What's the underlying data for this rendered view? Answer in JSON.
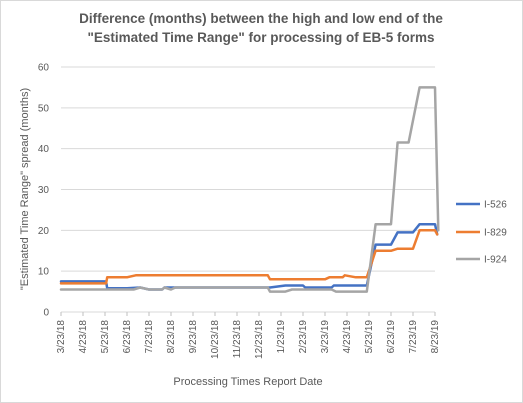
{
  "chart_data": {
    "type": "line",
    "title_line1": "Difference (months) between the high and low end of  the",
    "title_line2": "\"Estimated Time Range\" for processing of EB-5 forms",
    "xlabel": "Processing Times Report Date",
    "ylabel": "\"Estimated Time Range\" spread  (months)",
    "ylim": [
      0,
      60
    ],
    "yticks": [
      0,
      10,
      20,
      30,
      40,
      50,
      60
    ],
    "grid": true,
    "legend_position": "right",
    "x_tick_labels": [
      "3/23/18",
      "4/23/18",
      "5/23/18",
      "6/23/18",
      "7/23/18",
      "8/23/18",
      "9/23/18",
      "10/23/18",
      "11/23/18",
      "12/23/18",
      "1/23/19",
      "2/23/19",
      "3/23/19",
      "4/23/19",
      "5/23/19",
      "6/23/19",
      "7/23/19",
      "8/23/19"
    ],
    "x_tick_months": [
      0,
      1,
      2,
      3,
      4,
      5,
      6,
      7,
      8,
      9,
      10,
      11,
      12,
      13,
      14,
      15,
      16,
      17
    ],
    "x_range_months": [
      0,
      17
    ],
    "series": [
      {
        "name": "I-526",
        "color": "#4472c4",
        "points": [
          [
            0,
            7.5
          ],
          [
            2.05,
            7.5
          ],
          [
            2.1,
            5.8
          ],
          [
            3,
            5.8
          ],
          [
            3.6,
            6
          ],
          [
            4,
            5.5
          ],
          [
            4.6,
            5.5
          ],
          [
            4.7,
            6
          ],
          [
            5,
            6
          ],
          [
            9.4,
            6
          ],
          [
            9.5,
            6
          ],
          [
            10.2,
            6.5
          ],
          [
            11,
            6.5
          ],
          [
            11.1,
            6
          ],
          [
            12.3,
            6
          ],
          [
            12.4,
            6.5
          ],
          [
            13.9,
            6.5
          ],
          [
            14.3,
            16.5
          ],
          [
            15,
            16.5
          ],
          [
            15.3,
            19.5
          ],
          [
            16,
            19.5
          ],
          [
            16.3,
            21.5
          ],
          [
            17,
            21.5
          ],
          [
            17.1,
            19
          ]
        ]
      },
      {
        "name": "I-829",
        "color": "#ed7d31",
        "points": [
          [
            0,
            7
          ],
          [
            2.05,
            7
          ],
          [
            2.1,
            8.5
          ],
          [
            3,
            8.5
          ],
          [
            3.4,
            9
          ],
          [
            9.4,
            9
          ],
          [
            9.5,
            8
          ],
          [
            12,
            8
          ],
          [
            12.2,
            8.5
          ],
          [
            12.8,
            8.5
          ],
          [
            12.9,
            9
          ],
          [
            13.4,
            8.5
          ],
          [
            13.9,
            8.5
          ],
          [
            14.3,
            15
          ],
          [
            15,
            15
          ],
          [
            15.3,
            15.5
          ],
          [
            16,
            15.5
          ],
          [
            16.3,
            20
          ],
          [
            17,
            20
          ],
          [
            17.1,
            19
          ]
        ]
      },
      {
        "name": "I-924",
        "color": "#a5a5a5",
        "points": [
          [
            0,
            5.5
          ],
          [
            2.05,
            5.5
          ],
          [
            2.1,
            5.5
          ],
          [
            3.3,
            5.5
          ],
          [
            3.6,
            6
          ],
          [
            4,
            5.5
          ],
          [
            4.6,
            5.5
          ],
          [
            4.7,
            6
          ],
          [
            5,
            5.5
          ],
          [
            5.2,
            6
          ],
          [
            9.4,
            6
          ],
          [
            9.5,
            5
          ],
          [
            10.2,
            5
          ],
          [
            10.5,
            5.5
          ],
          [
            12.3,
            5.5
          ],
          [
            12.5,
            5
          ],
          [
            13.9,
            5
          ],
          [
            14.3,
            21.5
          ],
          [
            15,
            21.5
          ],
          [
            15.3,
            41.5
          ],
          [
            15.8,
            41.5
          ],
          [
            16.3,
            55
          ],
          [
            17,
            55
          ],
          [
            17.15,
            20
          ]
        ]
      }
    ]
  }
}
